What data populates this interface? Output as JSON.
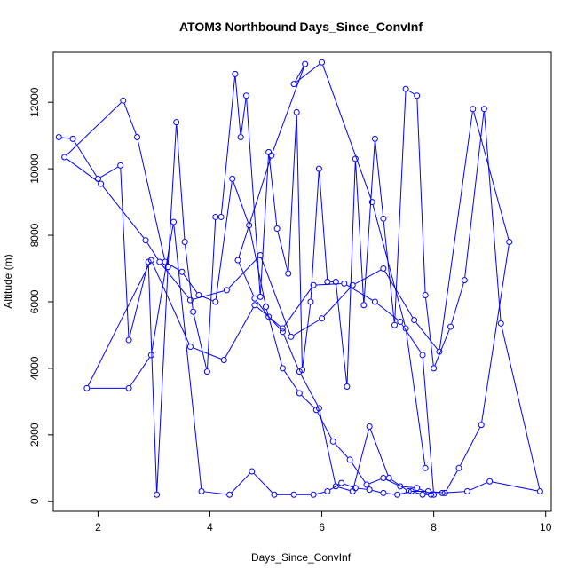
{
  "chart_data": {
    "type": "scatter",
    "title": "ATOM3 Northbound Days_Since_ConvInf",
    "xlabel": "Days_Since_ConvInf",
    "ylabel": "Altitude (m)",
    "xlim": [
      1.2,
      10.1
    ],
    "ylim": [
      -300,
      13500
    ],
    "x_ticks": [
      2,
      4,
      6,
      8,
      10
    ],
    "y_ticks": [
      0,
      2000,
      4000,
      6000,
      8000,
      10000,
      12000
    ],
    "x_tick_labels": [
      "2",
      "4",
      "6",
      "8",
      "10"
    ],
    "y_tick_labels": [
      "0",
      "2000",
      "4000",
      "6000",
      "8000",
      "10000",
      "12000"
    ],
    "grid": false,
    "legend": "none",
    "series": [
      {
        "color": "#0000ff",
        "style": "line-and-open-circles",
        "x": [
          1.3,
          1.55,
          2.0,
          2.4,
          2.55,
          2.9,
          3.05,
          3.25,
          3.4,
          3.55,
          3.7,
          3.95,
          4.1,
          4.2,
          4.45,
          4.55,
          4.65,
          4.9,
          5.05,
          5.2,
          5.4,
          5.55,
          5.65,
          5.8,
          5.95,
          6.1,
          6.25,
          6.45,
          6.6,
          6.75,
          6.95,
          7.1,
          7.3,
          7.5,
          7.7,
          7.85,
          8.0,
          8.3,
          8.55,
          8.9,
          9.2,
          9.9,
          9.0,
          8.6,
          8.15,
          7.95,
          7.8,
          7.6,
          7.35,
          7.1,
          6.85,
          6.6,
          6.35,
          6.1,
          5.85,
          5.5,
          5.15,
          4.75,
          4.35,
          3.85,
          3.35,
          2.95,
          2.55,
          1.8,
          2.95,
          3.65,
          4.25,
          4.8,
          5.3,
          5.85,
          6.4,
          6.95,
          7.4,
          7.8,
          8.0,
          7.7,
          7.4,
          7.1,
          6.8,
          6.5,
          6.2,
          5.9,
          5.6,
          5.3,
          5.0,
          4.7,
          4.4,
          4.1,
          3.8,
          3.5,
          3.2,
          2.7,
          2.45,
          1.4,
          2.05,
          2.85,
          3.1,
          3.65,
          4.3,
          4.9,
          5.45,
          6.0,
          6.55,
          7.1,
          7.65,
          8.1,
          8.7,
          9.35,
          8.85,
          8.45,
          8.2,
          7.9,
          7.55,
          7.2,
          6.85,
          6.55,
          6.25,
          5.95,
          5.6,
          5.3,
          5.05,
          4.8,
          4.5,
          5.1,
          5.7,
          5.5,
          6.0,
          6.9,
          7.5,
          7.85
        ],
        "y": [
          10950,
          10900,
          9700,
          10100,
          4850,
          7200,
          200,
          7050,
          11400,
          7800,
          5700,
          3900,
          8550,
          8550,
          12850,
          10950,
          12200,
          6150,
          10500,
          8200,
          6850,
          11700,
          3950,
          6000,
          10000,
          6600,
          6600,
          3450,
          10300,
          5900,
          10900,
          8500,
          5300,
          12400,
          12200,
          6200,
          4000,
          5250,
          6650,
          11800,
          5350,
          300,
          600,
          300,
          250,
          200,
          200,
          300,
          200,
          250,
          350,
          400,
          550,
          300,
          200,
          200,
          200,
          900,
          200,
          300,
          8400,
          4400,
          3400,
          3400,
          7250,
          4650,
          4250,
          5900,
          5200,
          6500,
          6550,
          6000,
          5400,
          4400,
          200,
          400,
          450,
          700,
          500,
          1250,
          1800,
          2750,
          3250,
          4000,
          5850,
          8300,
          9700,
          6000,
          6200,
          6900,
          7200,
          10950,
          12050,
          10350,
          9550,
          7850,
          7200,
          6050,
          6350,
          7400,
          4950,
          5500,
          6500,
          7000,
          5450,
          4500,
          11800,
          7800,
          2300,
          1000,
          250,
          300,
          300,
          700,
          2250,
          300,
          450,
          2800,
          3900,
          5100,
          5550,
          6100,
          7250,
          10400,
          13150,
          12550,
          13200,
          9000,
          5200,
          1000
        ]
      }
    ]
  }
}
